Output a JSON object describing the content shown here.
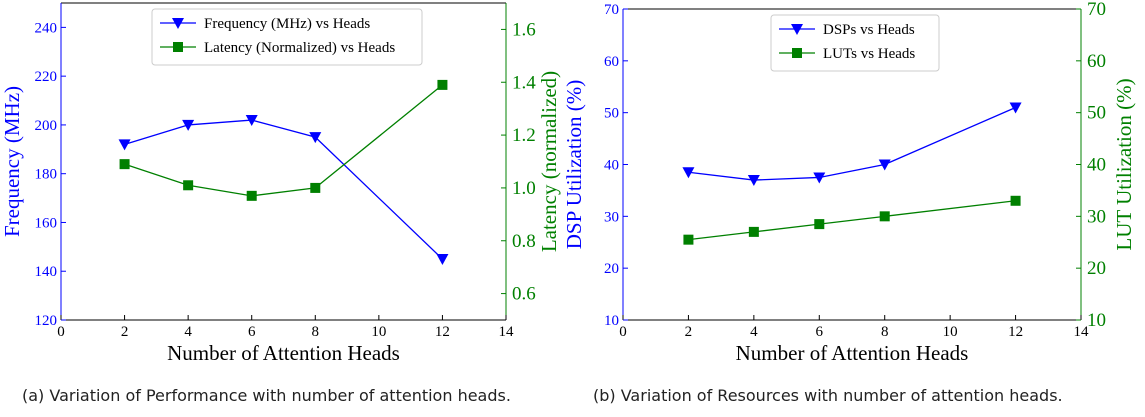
{
  "captions": {
    "a": "(a)  Variation of Performance with number of attention heads.",
    "b": "(b) Variation of Resources with number of attention heads."
  },
  "colors": {
    "blue": "#0000ff",
    "green": "#008000",
    "axis": "#000000"
  },
  "chart_data": [
    {
      "type": "line",
      "xlabel": "Number of Attention Heads",
      "xlim": [
        0,
        14
      ],
      "xticks": [
        0,
        2,
        4,
        6,
        8,
        10,
        12,
        14
      ],
      "ylabel_left": "Frequency (MHz)",
      "ylim_left": [
        120,
        250
      ],
      "yticks_left": [
        120,
        140,
        160,
        180,
        200,
        220,
        240
      ],
      "ylabel_right": "Latency (normalized)",
      "ylim_right": [
        0.5,
        1.7
      ],
      "yticks_right": [
        0.6,
        0.8,
        1.0,
        1.2,
        1.4,
        1.6
      ],
      "grid": false,
      "legend": "top-center",
      "series": [
        {
          "name": "Frequency (MHz) vs Heads",
          "axis": "left",
          "color": "#0000ff",
          "marker": "triangle-down",
          "x": [
            2,
            4,
            6,
            8,
            12
          ],
          "y": [
            192,
            200,
            202,
            195,
            145
          ]
        },
        {
          "name": "Latency (Normalized) vs Heads",
          "axis": "right",
          "color": "#008000",
          "marker": "square",
          "x": [
            2,
            4,
            6,
            8,
            12
          ],
          "y": [
            1.09,
            1.01,
            0.97,
            1.0,
            1.39
          ]
        }
      ]
    },
    {
      "type": "line",
      "xlabel": "Number of Attention Heads",
      "xlim": [
        0,
        14
      ],
      "xticks": [
        0,
        2,
        4,
        6,
        8,
        10,
        12,
        14
      ],
      "ylabel_left": "DSP Utilization (%)",
      "ylim_left": [
        10,
        70
      ],
      "yticks_left": [
        10,
        20,
        30,
        40,
        50,
        60,
        70
      ],
      "ylabel_right": "LUT Utilization (%)",
      "ylim_right": [
        10,
        70
      ],
      "yticks_right": [
        10,
        20,
        30,
        40,
        50,
        60,
        70
      ],
      "grid": false,
      "legend": "top-center",
      "series": [
        {
          "name": "DSPs vs Heads",
          "axis": "left",
          "color": "#0000ff",
          "marker": "triangle-down",
          "x": [
            2,
            4,
            6,
            8,
            12
          ],
          "y": [
            38.5,
            37,
            37.5,
            40,
            51
          ]
        },
        {
          "name": "LUTs vs Heads",
          "axis": "right",
          "color": "#008000",
          "marker": "square",
          "x": [
            2,
            4,
            6,
            8,
            12
          ],
          "y": [
            25.5,
            27,
            28.5,
            30,
            33
          ]
        }
      ]
    }
  ]
}
